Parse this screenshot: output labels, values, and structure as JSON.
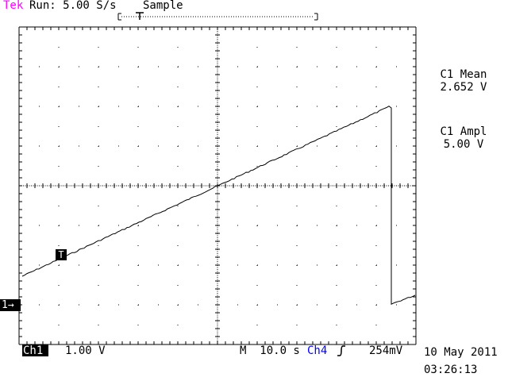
{
  "header": {
    "brand": "Tek",
    "run_status": "Run: 5.00 S/s",
    "acquisition_mode": "Sample"
  },
  "measurements": [
    {
      "label": "C1 Mean",
      "value": "2.652 V"
    },
    {
      "label": "C1 Ampl",
      "value": "5.00 V"
    }
  ],
  "footer": {
    "channel": "Ch1",
    "channel_scale": "1.00 V",
    "timebase": "M  10.0 s",
    "trigger_source": "Ch4",
    "trigger_slope_icon": "rising-edge-icon",
    "trigger_level": "254mV",
    "date": "10 May 2011",
    "time": "03:26:13"
  },
  "channel_marker": "1→",
  "trigger_marker": "T",
  "colors": {
    "brand": "#ff00ff",
    "trigger_source": "#0000ff",
    "trace": "#000000",
    "graticule": "#000000"
  }
}
